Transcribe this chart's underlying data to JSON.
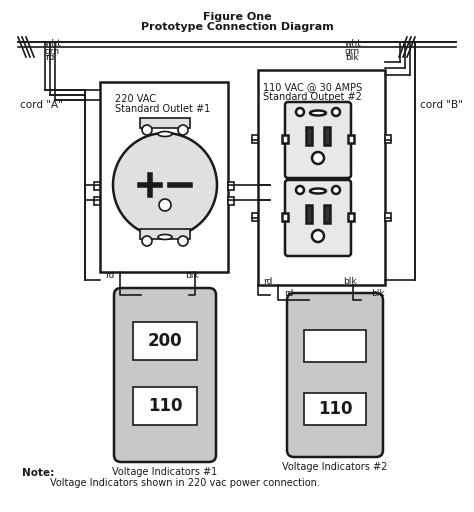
{
  "title_line1": "Figure One",
  "title_line2": "Prototype Connection Diagram",
  "outlet1_label_line1": "220 VAC",
  "outlet1_label_line2": "Standard Outlet #1",
  "outlet2_label_line1": "110 VAC @ 30 AMPS",
  "outlet2_label_line2": "Standard Outpet #2",
  "cord_a": "cord \"A\"",
  "cord_b": "cord \"B\"",
  "wire_labels_left": [
    "wht",
    "grn",
    "rd"
  ],
  "wire_labels_right": [
    "wht",
    "grn",
    "blk"
  ],
  "vol_ind1_label": "Voltage Indicators #1",
  "vol_ind2_label": "Voltage Indicators #2",
  "vol_ind1_top": "200",
  "vol_ind1_bot": "110",
  "vol_ind2_top": "",
  "vol_ind2_bot": "110",
  "note": "Note:",
  "note_text": "Voltage Indicators shown in 220 vac power connection.",
  "rd_label": "rd",
  "blk_label": "blk",
  "bg_color": "#ffffff",
  "line_color": "#1a1a1a"
}
